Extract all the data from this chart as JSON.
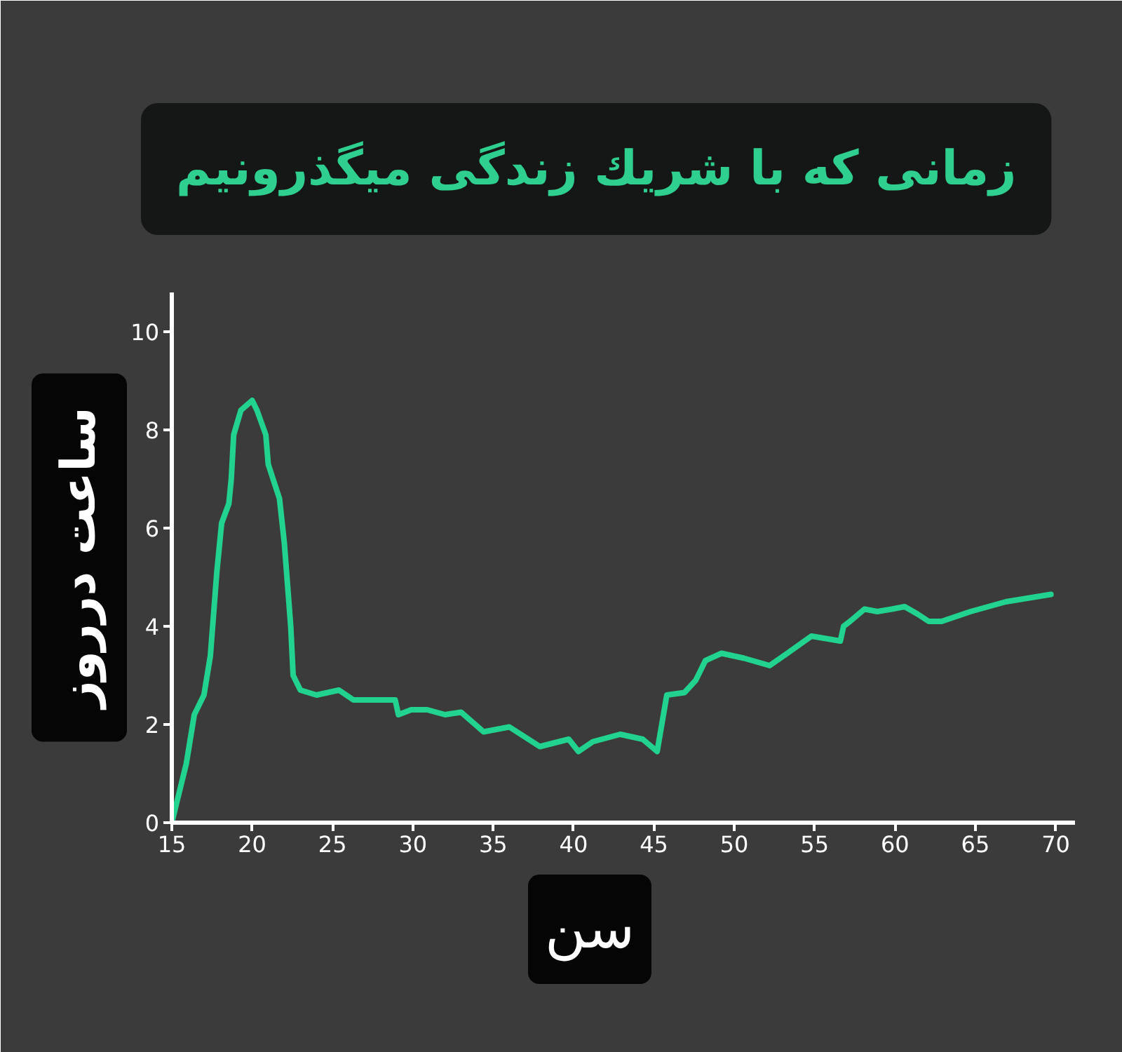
{
  "chart_data": {
    "type": "line",
    "title": "زمانی که با شریك زندگی میگذرونیم",
    "xlabel": "سن",
    "ylabel": "ساعت درروز",
    "x": [
      15,
      15.9,
      16.4,
      17.0,
      17.4,
      17.8,
      18.1,
      18.55,
      18.7,
      18.85,
      19.3,
      20.0,
      20.3,
      20.85,
      21.0,
      21.7,
      22.0,
      22.4,
      22.55,
      23.0,
      24.0,
      25.4,
      26.3,
      27.7,
      28.9,
      29.1,
      29.9,
      30.9,
      32.0,
      33.0,
      34.4,
      36.0,
      37.9,
      39.7,
      40.3,
      41.2,
      42.9,
      44.3,
      45.2,
      45.8,
      46.9,
      47.6,
      48.2,
      49.2,
      50.6,
      52.2,
      53.3,
      54.8,
      56.6,
      56.8,
      57.2,
      58.1,
      58.9,
      59.8,
      60.6,
      61.4,
      62.1,
      62.9,
      64.7,
      66.9,
      69.7
    ],
    "series": [
      {
        "color": "#22d38f",
        "values": [
          0,
          1.2,
          2.2,
          2.6,
          3.4,
          5.1,
          6.1,
          6.5,
          7.0,
          7.9,
          8.4,
          8.6,
          8.4,
          7.9,
          7.3,
          6.6,
          5.7,
          4.0,
          3.0,
          2.7,
          2.6,
          2.7,
          2.5,
          2.5,
          2.5,
          2.2,
          2.3,
          2.3,
          2.2,
          2.25,
          1.85,
          1.95,
          1.55,
          1.7,
          1.45,
          1.65,
          1.8,
          1.7,
          1.45,
          2.6,
          2.65,
          2.9,
          3.3,
          3.45,
          3.35,
          3.2,
          3.45,
          3.8,
          3.7,
          4.0,
          4.1,
          4.35,
          4.3,
          4.35,
          4.4,
          4.25,
          4.1,
          4.1,
          4.3,
          4.5,
          4.65
        ]
      }
    ],
    "xlim": [
      15,
      71.2
    ],
    "ylim": [
      0,
      10.8
    ],
    "xticks": [
      15,
      20,
      25,
      30,
      35,
      40,
      45,
      50,
      55,
      60,
      65,
      70
    ],
    "yticks": [
      0,
      2,
      4,
      6,
      8,
      10
    ],
    "grid": false,
    "marker": "none",
    "line_style": "solid"
  }
}
